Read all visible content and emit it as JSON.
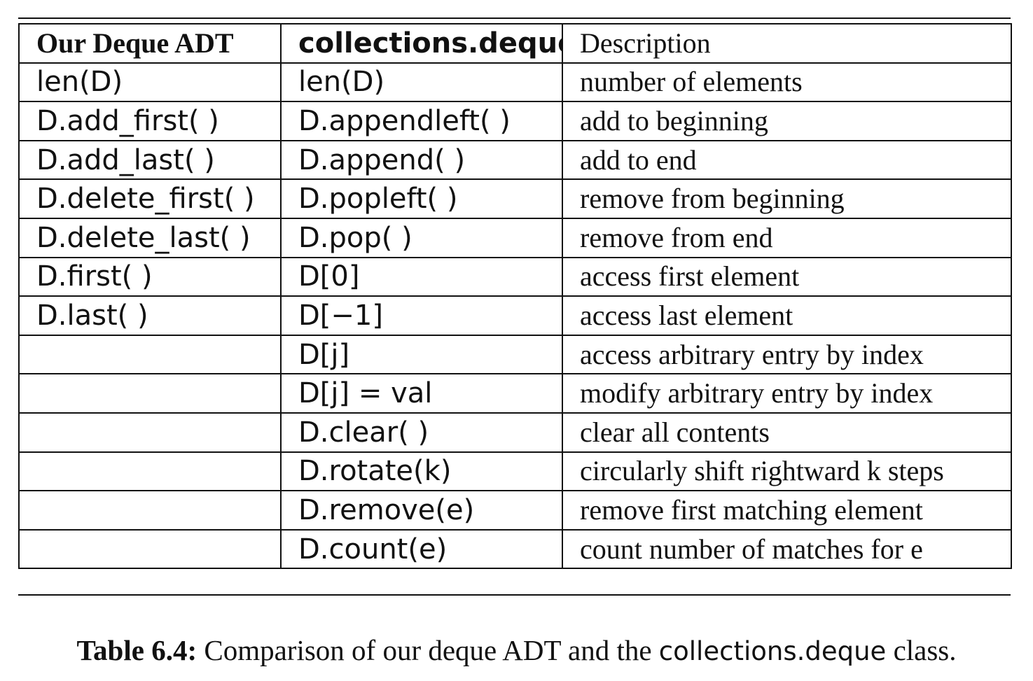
{
  "table": {
    "headers": [
      "Our Deque ADT",
      "collections.deque",
      "Description"
    ],
    "rows": [
      [
        "len(D)",
        "len(D)",
        "number of elements"
      ],
      [
        "D.add_first( )",
        "D.appendleft( )",
        "add to beginning"
      ],
      [
        "D.add_last( )",
        "D.append( )",
        "add to end"
      ],
      [
        "D.delete_first( )",
        "D.popleft( )",
        "remove from beginning"
      ],
      [
        "D.delete_last( )",
        "D.pop( )",
        "remove from end"
      ],
      [
        "D.first( )",
        "D[0]",
        "access first element"
      ],
      [
        "D.last( )",
        "D[−1]",
        "access last element"
      ],
      [
        "",
        "D[j]",
        "access arbitrary entry by index"
      ],
      [
        "",
        "D[j] = val",
        "modify arbitrary entry by index"
      ],
      [
        "",
        "D.clear( )",
        "clear all contents"
      ],
      [
        "",
        "D.rotate(k)",
        "circularly shift rightward k steps"
      ],
      [
        "",
        "D.remove(e)",
        "remove first matching element"
      ],
      [
        "",
        "D.count(e)",
        "count number of matches for e"
      ]
    ]
  },
  "caption": {
    "label": "Table 6.4:",
    "text_before": " Comparison of our deque ADT and the ",
    "code": "collections.deque",
    "text_after": " class."
  }
}
